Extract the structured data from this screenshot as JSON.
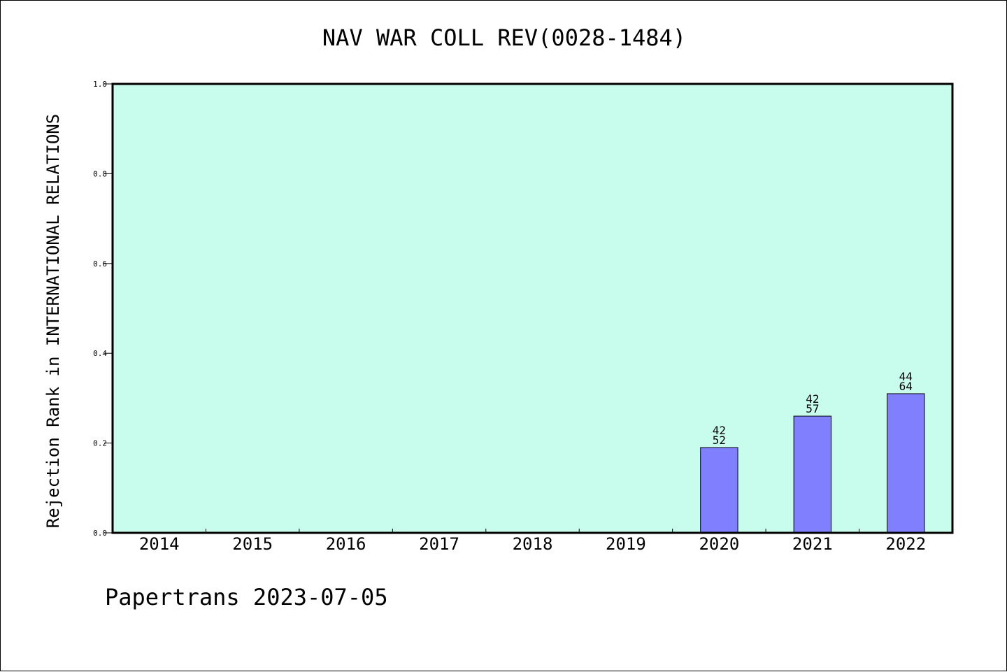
{
  "chart_data": {
    "type": "bar",
    "title": "NAV WAR COLL REV(0028-1484)",
    "ylabel": "Rejection Rank in INTERNATIONAL RELATIONS",
    "xlabel": "",
    "categories": [
      "2014",
      "2015",
      "2016",
      "2017",
      "2018",
      "2019",
      "2020",
      "2021",
      "2022"
    ],
    "values": [
      null,
      null,
      null,
      null,
      null,
      null,
      0.19,
      0.26,
      0.31
    ],
    "bar_labels": [
      null,
      null,
      null,
      null,
      null,
      null,
      [
        "42",
        "52"
      ],
      [
        "42",
        "57"
      ],
      [
        "44",
        "64"
      ]
    ],
    "ylim": [
      0,
      1.0
    ],
    "yticks": [
      "0.0",
      "0.2",
      "0.4",
      "0.6",
      "0.8",
      "1.0"
    ],
    "grid": false,
    "colors": {
      "plot_background": "#c8fced",
      "bar_fill": "#8080ff",
      "bar_stroke": "#000000"
    }
  },
  "footer": {
    "text": "Papertrans 2023-07-05"
  }
}
